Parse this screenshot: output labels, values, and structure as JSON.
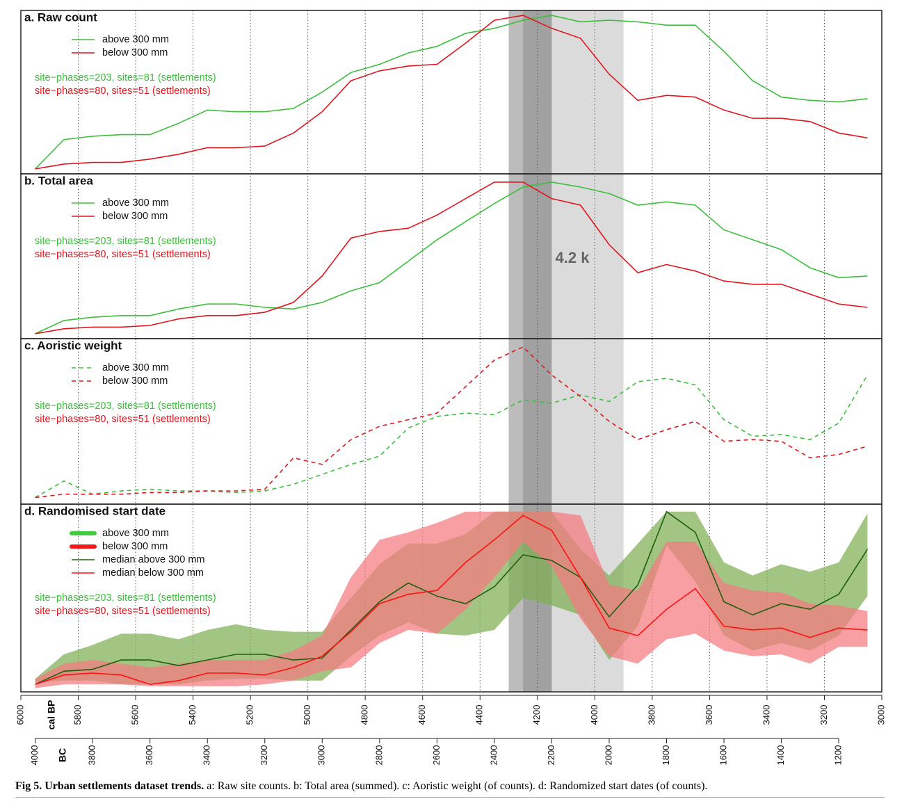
{
  "caption": {
    "label": "Fig 5. Urban settlements dataset trends.",
    "text": "a: Raw site counts. b: Total area (summed). c: Aoristic weight (of counts). d: Randomized start dates (of counts)."
  },
  "chart_data": [
    {
      "type": "line",
      "title": "a. Raw count",
      "xlim": [
        6000,
        3000
      ],
      "ylim": [
        0,
        100
      ],
      "x": [
        5950,
        5850,
        5750,
        5650,
        5550,
        5450,
        5350,
        5250,
        5150,
        5050,
        4950,
        4850,
        4750,
        4650,
        4550,
        4450,
        4350,
        4250,
        4150,
        4050,
        3950,
        3850,
        3750,
        3650,
        3550,
        3450,
        3350,
        3250,
        3150,
        3050
      ],
      "notes": [
        {
          "text": "site−phases=203, sites=81 (settlements)",
          "color": "#3dbe3d"
        },
        {
          "text": "site−phases=80, sites=51 (settlements)",
          "color": "#e0161e"
        }
      ],
      "series": [
        {
          "name": "above 300 mm",
          "color": "#3dbe3d",
          "values": [
            3,
            21,
            23,
            24,
            24,
            31,
            39,
            38,
            38,
            40,
            50,
            62,
            67,
            74,
            78,
            86,
            89,
            94,
            97,
            93,
            94,
            93,
            91,
            91,
            75,
            57,
            47,
            45,
            44,
            46
          ]
        },
        {
          "name": "below 300 mm",
          "color": "#e0161e",
          "values": [
            3,
            6,
            7,
            7,
            9,
            12,
            16,
            16,
            17,
            25,
            38,
            57,
            63,
            66,
            67,
            80,
            94,
            97,
            89,
            83,
            61,
            45,
            48,
            47,
            39,
            34,
            34,
            32,
            25,
            22
          ]
        }
      ]
    },
    {
      "type": "line",
      "title": "b. Total area",
      "xlim": [
        6000,
        3000
      ],
      "ylim": [
        0,
        100
      ],
      "annotation": "4.2 k",
      "highlights": [
        {
          "from": 4300,
          "to": 3900
        },
        {
          "from": 4300,
          "to": 4150
        },
        {
          "from": 4250,
          "to": 4150
        }
      ],
      "x": [
        5950,
        5850,
        5750,
        5650,
        5550,
        5450,
        5350,
        5250,
        5150,
        5050,
        4950,
        4850,
        4750,
        4650,
        4550,
        4450,
        4350,
        4250,
        4150,
        4050,
        3950,
        3850,
        3750,
        3650,
        3550,
        3450,
        3350,
        3250,
        3150,
        3050
      ],
      "notes": [
        {
          "text": "site−phases=203, sites=81 (settlements)",
          "color": "#3dbe3d"
        },
        {
          "text": "site−phases=80, sites=51 (settlements)",
          "color": "#e0161e"
        }
      ],
      "series": [
        {
          "name": "above 300 mm",
          "color": "#3dbe3d",
          "values": [
            3,
            11,
            13,
            14,
            14,
            18,
            21,
            21,
            19,
            18,
            22,
            29,
            34,
            47,
            60,
            71,
            82,
            92,
            95,
            92,
            88,
            81,
            83,
            81,
            66,
            60,
            54,
            43,
            37,
            38
          ]
        },
        {
          "name": "below 300 mm",
          "color": "#e0161e",
          "values": [
            3,
            6,
            7,
            7,
            8,
            12,
            14,
            14,
            16,
            22,
            38,
            61,
            65,
            67,
            75,
            85,
            95,
            95,
            85,
            81,
            57,
            40,
            45,
            41,
            35,
            33,
            33,
            27,
            21,
            19
          ]
        }
      ]
    },
    {
      "type": "line",
      "title": "c. Aoristic weight",
      "xlim": [
        6000,
        3000
      ],
      "ylim": [
        0,
        100
      ],
      "linestyle": "dashed",
      "x": [
        5950,
        5850,
        5750,
        5650,
        5550,
        5450,
        5350,
        5250,
        5150,
        5050,
        4950,
        4850,
        4750,
        4650,
        4550,
        4450,
        4350,
        4250,
        4150,
        4050,
        3950,
        3850,
        3750,
        3650,
        3550,
        3450,
        3350,
        3250,
        3150,
        3050
      ],
      "notes": [
        {
          "text": "site−phases=203, sites=81 (settlements)",
          "color": "#3dbe3d"
        },
        {
          "text": "site−phases=80, sites=51 (settlements)",
          "color": "#e0161e"
        }
      ],
      "series": [
        {
          "name": "above 300 mm",
          "color": "#3dbe3d",
          "values": [
            4,
            14,
            6,
            8,
            9,
            8,
            8,
            7,
            8,
            12,
            18,
            24,
            29,
            46,
            53,
            55,
            54,
            63,
            61,
            66,
            62,
            74,
            76,
            72,
            51,
            41,
            42,
            39,
            49,
            78
          ]
        },
        {
          "name": "below 300 mm",
          "color": "#e0161e",
          "values": [
            4,
            6,
            6,
            6,
            7,
            7,
            8,
            8,
            9,
            28,
            24,
            39,
            47,
            51,
            55,
            71,
            87,
            95,
            78,
            65,
            50,
            39,
            45,
            50,
            38,
            39,
            38,
            28,
            30,
            35
          ]
        }
      ]
    },
    {
      "type": "line",
      "title": "d. Randomised start date",
      "xlim": [
        6000,
        3000
      ],
      "ylim": [
        0,
        100
      ],
      "xticks": [
        6000,
        5800,
        5600,
        5400,
        5200,
        5000,
        4800,
        4600,
        4400,
        4200,
        4000,
        3800,
        3600,
        3400,
        3200,
        3000
      ],
      "xlabel": "cal BP",
      "x2lim": [
        4050,
        1050
      ],
      "x2ticks": [
        4000,
        3800,
        3600,
        3400,
        3200,
        3000,
        2800,
        2600,
        2400,
        2200,
        2000,
        1800,
        1600,
        1400,
        1200
      ],
      "x2label": "BC",
      "x": [
        5950,
        5850,
        5750,
        5650,
        5550,
        5450,
        5350,
        5250,
        5150,
        5050,
        4950,
        4850,
        4750,
        4650,
        4550,
        4450,
        4350,
        4250,
        4150,
        4050,
        3950,
        3850,
        3750,
        3650,
        3550,
        3450,
        3350,
        3250,
        3150,
        3050
      ],
      "notes": [
        {
          "text": "site−phases=203, sites=81 (settlements)",
          "color": "#3dbe3d"
        },
        {
          "text": "site−phases=80, sites=51 (settlements)",
          "color": "#e0161e"
        }
      ],
      "series": [
        {
          "name": "above 300 mm",
          "color": "#3fcc3f",
          "fill": "#7fae55",
          "upper": [
            7,
            20,
            25,
            31,
            31,
            28,
            33,
            36,
            33,
            32,
            32,
            50,
            68,
            79,
            79,
            84,
            96,
            96,
            96,
            76,
            62,
            79,
            96,
            96,
            69,
            62,
            68,
            64,
            69,
            95
          ],
          "lower": [
            5,
            6,
            6,
            4,
            4,
            4,
            6,
            7,
            7,
            6,
            6,
            19,
            30,
            37,
            31,
            30,
            33,
            50,
            46,
            41,
            17,
            35,
            78,
            59,
            30,
            22,
            26,
            22,
            30,
            51
          ]
        },
        {
          "name": "below 300 mm",
          "color": "#f01818",
          "fill": "#f57a80",
          "upper": [
            7,
            15,
            17,
            15,
            13,
            15,
            17,
            17,
            17,
            22,
            30,
            61,
            81,
            85,
            90,
            96,
            96,
            96,
            96,
            94,
            57,
            54,
            80,
            80,
            58,
            54,
            53,
            47,
            46,
            43
          ],
          "lower": [
            2,
            4,
            4,
            4,
            3,
            3,
            3,
            3,
            4,
            6,
            11,
            13,
            26,
            33,
            31,
            44,
            61,
            80,
            67,
            39,
            19,
            15,
            28,
            31,
            22,
            19,
            20,
            15,
            24,
            24
          ]
        },
        {
          "name": "median above 300 mm",
          "color": "#1f5f0f",
          "values": [
            4,
            11,
            12,
            17,
            17,
            14,
            17,
            20,
            20,
            17,
            18,
            33,
            48,
            58,
            51,
            47,
            56,
            73,
            70,
            61,
            40,
            57,
            96,
            85,
            48,
            41,
            47,
            44,
            52,
            76
          ]
        },
        {
          "name": "median below 300 mm",
          "color": "#ff1010",
          "values": [
            4,
            9,
            10,
            9,
            4,
            6,
            10,
            10,
            9,
            13,
            19,
            32,
            47,
            52,
            54,
            69,
            81,
            94,
            86,
            61,
            34,
            30,
            44,
            55,
            35,
            33,
            34,
            29,
            34,
            33
          ]
        }
      ]
    }
  ]
}
